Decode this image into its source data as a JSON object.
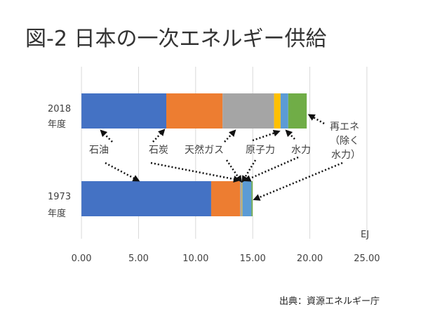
{
  "chart_data": {
    "type": "bar",
    "orientation": "horizontal",
    "stacked": true,
    "title": "図-2 日本の一次エネルギー供給",
    "unit_label": "EJ",
    "categories": [
      "2018 年度",
      "1973 年度"
    ],
    "category_lines": [
      [
        "2018",
        "年度"
      ],
      [
        "1973",
        "年度"
      ]
    ],
    "xlim": [
      0,
      25
    ],
    "xticks": [
      "0.00",
      "5.00",
      "10.00",
      "15.00",
      "20.00",
      "25.00"
    ],
    "grid": true,
    "series": [
      {
        "name": "石油",
        "color": "#4472C4",
        "values": [
          7.43,
          11.36
        ]
      },
      {
        "name": "石炭",
        "color": "#ED7D31",
        "values": [
          4.93,
          2.53
        ]
      },
      {
        "name": "天然ガス",
        "color": "#A5A5A5",
        "values": [
          4.51,
          0.15
        ]
      },
      {
        "name": "原子力",
        "color": "#FFC000",
        "values": [
          0.57,
          0.05
        ]
      },
      {
        "name": "水力",
        "color": "#5B9BD5",
        "values": [
          0.67,
          0.8
        ]
      },
      {
        "name": "再エネ（除く水力）",
        "color": "#70AD47",
        "values": [
          1.62,
          0.1
        ]
      }
    ],
    "annotations": {
      "oil": "石油",
      "coal": "石炭",
      "gas": "天然ガス",
      "nuclear": "原子力",
      "hydro": "水力",
      "renew": [
        "再エネ",
        "（除く",
        "水力）"
      ]
    },
    "source": "出典：資源エネルギー庁"
  }
}
